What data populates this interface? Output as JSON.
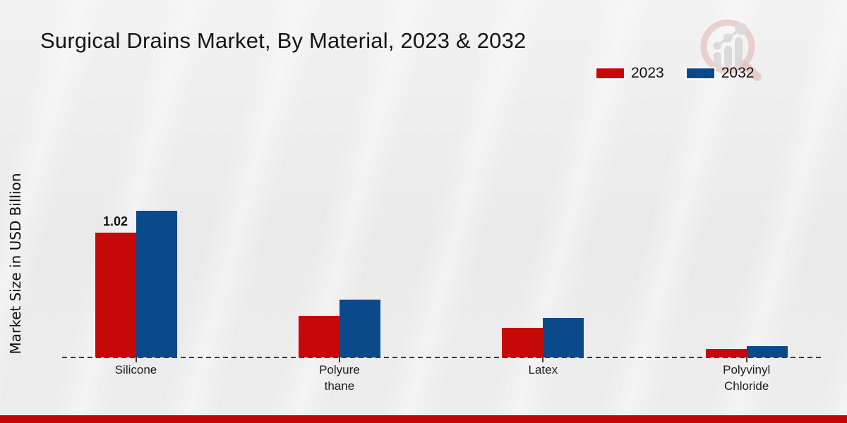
{
  "title": "Surgical Drains Market, By Material, 2023 & 2032",
  "ylabel": "Market Size in USD Billion",
  "legend": {
    "items": [
      {
        "label": "2023",
        "color": "#c70808"
      },
      {
        "label": "2032",
        "color": "#0b4a8a"
      }
    ]
  },
  "watermark_icon": "bar-chart-magnifier-logo",
  "footer": {
    "bar_color": "#c50505"
  },
  "chart_data": {
    "type": "bar",
    "title": "Surgical Drains Market, By Material, 2023 & 2032",
    "ylabel": "Market Size in USD Billion",
    "xlabel": "",
    "categories": [
      "Silicone",
      "Polyure\nthane",
      "Latex",
      "Polyvinyl\nChloride"
    ],
    "series": [
      {
        "name": "2023",
        "color": "#c70808",
        "values": [
          1.02,
          0.34,
          0.24,
          0.07
        ]
      },
      {
        "name": "2032",
        "color": "#0b4a8a",
        "values": [
          1.2,
          0.47,
          0.32,
          0.09
        ]
      }
    ],
    "bar_labels": [
      {
        "series": "2023",
        "category": "Silicone",
        "text": "1.02"
      }
    ],
    "ylim": [
      0,
      1.5
    ],
    "grid": false,
    "y_axis_ticks_visible": false,
    "baseline_style": "dashed",
    "legend_position": "top-right"
  }
}
